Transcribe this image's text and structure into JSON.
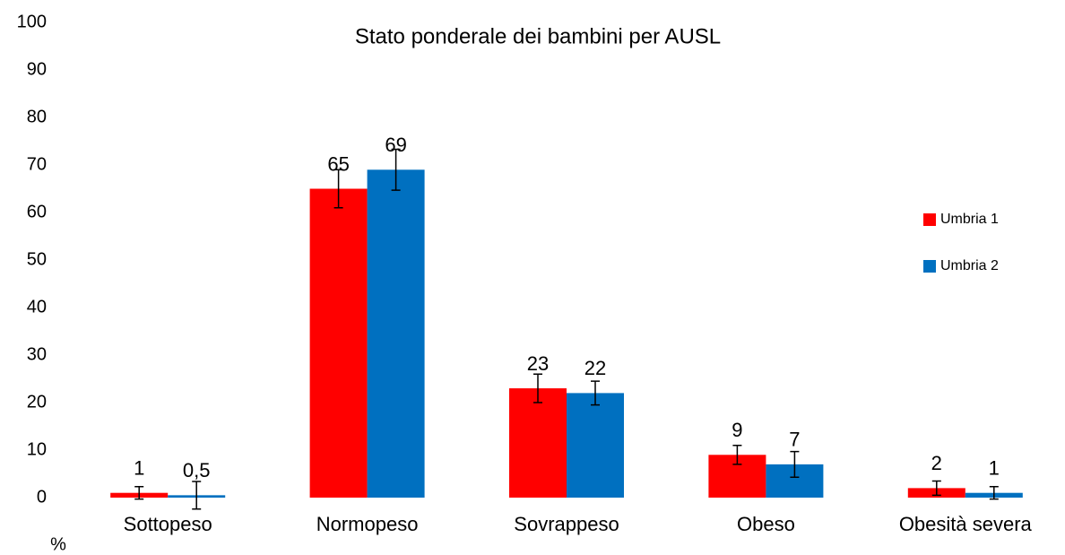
{
  "chart_data": {
    "type": "bar",
    "title": "Stato ponderale dei bambini per AUSL",
    "y_label": "%",
    "categories": [
      "Sottopeso",
      "Normopeso",
      "Sovrappeso",
      "Obeso",
      "Obesità severa"
    ],
    "series": [
      {
        "name": "Umbria 1",
        "color": "#ff0000",
        "values": [
          1,
          65,
          23,
          9,
          2
        ],
        "errors": [
          1.3,
          4,
          3,
          2,
          1.5
        ]
      },
      {
        "name": "Umbria 2",
        "color": "#0070c0",
        "values": [
          0.5,
          69,
          22,
          7,
          1
        ],
        "value_labels": [
          "0,5",
          "69",
          "22",
          "7",
          "1"
        ],
        "errors": [
          2.9,
          4.3,
          2.5,
          2.7,
          1.3
        ]
      }
    ],
    "ylim": [
      0,
      100
    ],
    "yticks": [
      0,
      10,
      20,
      30,
      40,
      50,
      60,
      70,
      80,
      90,
      100
    ],
    "legend": "right"
  }
}
